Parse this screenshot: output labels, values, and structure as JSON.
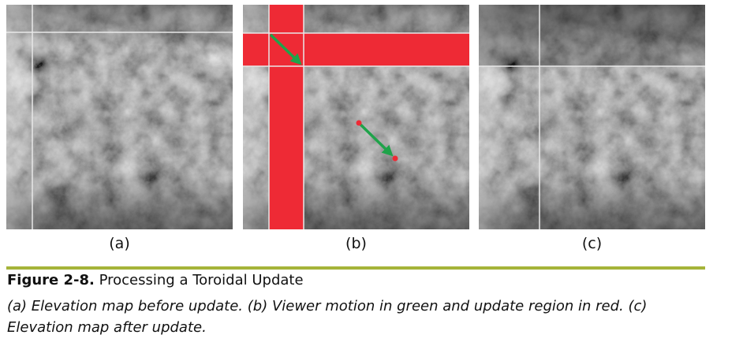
{
  "panels": [
    {
      "id": "a",
      "label": "(a)"
    },
    {
      "id": "b",
      "label": "(b)"
    },
    {
      "id": "c",
      "label": "(c)"
    }
  ],
  "caption": {
    "figure_number": "Figure 2-8.",
    "title": "Processing a Toroidal Update",
    "description": "(a) Elevation map before update. (b) Viewer motion in green and update region in red. (c) Elevation map after update."
  },
  "colors": {
    "accent_rule": "#a5b43a",
    "update_region": "#ee2a35",
    "viewer_motion": "#1fa34a",
    "grid_line": "#e8e8e8"
  }
}
